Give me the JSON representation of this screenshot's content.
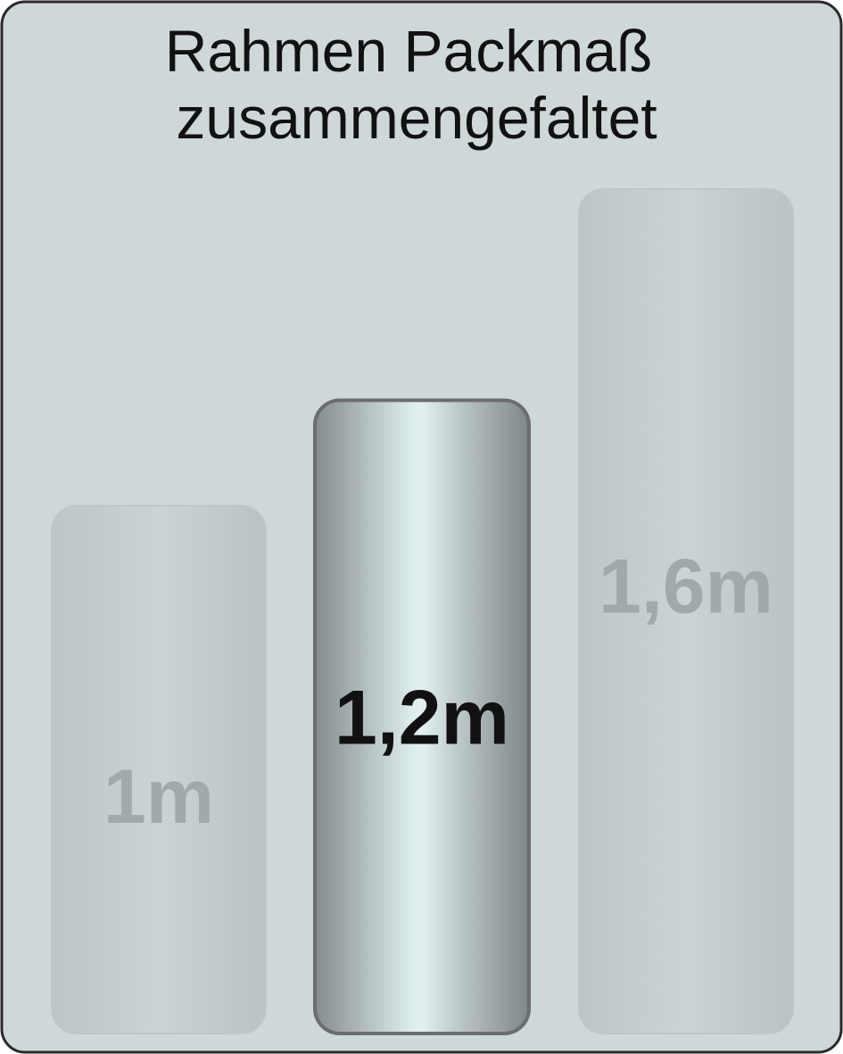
{
  "chart_data": {
    "type": "bar",
    "title": [
      "Rahmen Packmaß",
      "zusammengefaltet"
    ],
    "categories": [
      "1m",
      "1,2m",
      "1,6m"
    ],
    "values": [
      1.0,
      1.2,
      1.6
    ],
    "unit": "m",
    "data_labels": [
      "1m",
      "1,2m",
      "1,6m"
    ],
    "highlighted_index": 1,
    "ylim": [
      0,
      1.6
    ],
    "grid": false,
    "legend": "none"
  },
  "colors": {
    "background": "#cfd8d9",
    "frame": "#2a2a2a",
    "faded_bar": "#c4cecf",
    "faded_label": "#a1aaab",
    "highlight_label": "#111111",
    "highlight_border": "#6b6d6e"
  }
}
